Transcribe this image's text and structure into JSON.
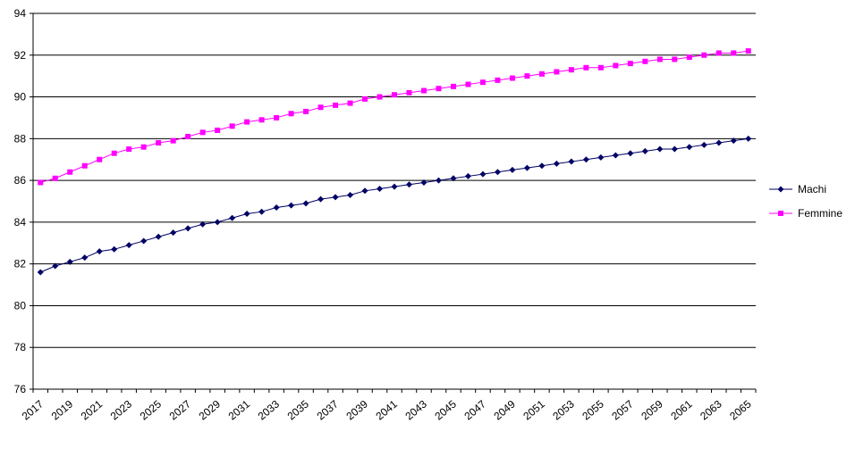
{
  "chart_data": {
    "type": "line",
    "title": "",
    "xlabel": "",
    "ylabel": "",
    "ylim": [
      76,
      94
    ],
    "yticks": [
      76,
      78,
      80,
      82,
      84,
      86,
      88,
      90,
      92,
      94
    ],
    "grid": true,
    "legend_position": "right",
    "x": [
      2017,
      2018,
      2019,
      2020,
      2021,
      2022,
      2023,
      2024,
      2025,
      2026,
      2027,
      2028,
      2029,
      2030,
      2031,
      2032,
      2033,
      2034,
      2035,
      2036,
      2037,
      2038,
      2039,
      2040,
      2041,
      2042,
      2043,
      2044,
      2045,
      2046,
      2047,
      2048,
      2049,
      2050,
      2051,
      2052,
      2053,
      2054,
      2055,
      2056,
      2057,
      2058,
      2059,
      2060,
      2061,
      2062,
      2063,
      2064,
      2065
    ],
    "xtick_labels": [
      "2017",
      "2019",
      "2021",
      "2023",
      "2025",
      "2027",
      "2029",
      "2031",
      "2033",
      "2035",
      "2037",
      "2039",
      "2041",
      "2043",
      "2045",
      "2047",
      "2049",
      "2051",
      "2053",
      "2055",
      "2057",
      "2059",
      "2061",
      "2063",
      "2065"
    ],
    "series": [
      {
        "name": "Machi",
        "color": "#000066",
        "marker": "diamond",
        "values": [
          81.6,
          81.9,
          82.1,
          82.3,
          82.6,
          82.7,
          82.9,
          83.1,
          83.3,
          83.5,
          83.7,
          83.9,
          84.0,
          84.2,
          84.4,
          84.5,
          84.7,
          84.8,
          84.9,
          85.1,
          85.2,
          85.3,
          85.5,
          85.6,
          85.7,
          85.8,
          85.9,
          86.0,
          86.1,
          86.2,
          86.3,
          86.4,
          86.5,
          86.6,
          86.7,
          86.8,
          86.9,
          87.0,
          87.1,
          87.2,
          87.3,
          87.4,
          87.5,
          87.5,
          87.6,
          87.7,
          87.8,
          87.9,
          88.0
        ]
      },
      {
        "name": "Femmine",
        "color": "#ff00ff",
        "marker": "square",
        "values": [
          85.9,
          86.1,
          86.4,
          86.7,
          87.0,
          87.3,
          87.5,
          87.6,
          87.8,
          87.9,
          88.1,
          88.3,
          88.4,
          88.6,
          88.8,
          88.9,
          89.0,
          89.2,
          89.3,
          89.5,
          89.6,
          89.7,
          89.9,
          90.0,
          90.1,
          90.2,
          90.3,
          90.4,
          90.5,
          90.6,
          90.7,
          90.8,
          90.9,
          91.0,
          91.1,
          91.2,
          91.3,
          91.4,
          91.4,
          91.5,
          91.6,
          91.7,
          91.8,
          91.8,
          91.9,
          92.0,
          92.1,
          92.1,
          92.2
        ]
      }
    ]
  }
}
